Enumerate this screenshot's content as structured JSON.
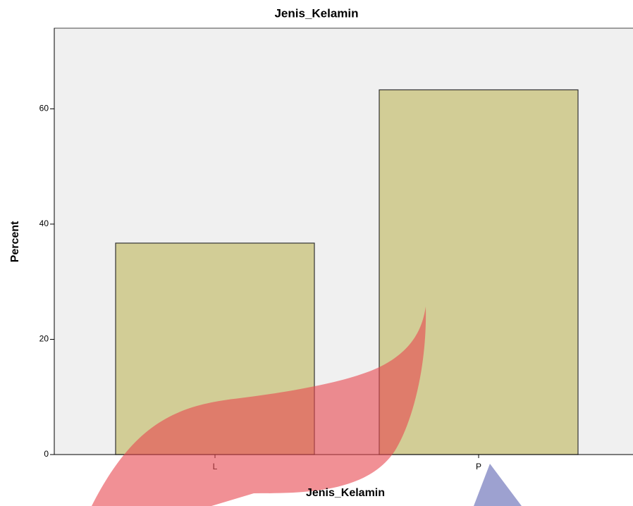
{
  "chart_data": {
    "type": "bar",
    "title": "Jenis_Kelamin",
    "x_label": "Jenis_Kelamin",
    "y_label": "Percent",
    "categories": [
      "L",
      "P"
    ],
    "values": [
      36.7,
      63.3
    ],
    "color": "#d2cd96",
    "ylim": [
      0,
      74
    ],
    "yticks": [
      0,
      20,
      40,
      60
    ],
    "grid": false
  }
}
